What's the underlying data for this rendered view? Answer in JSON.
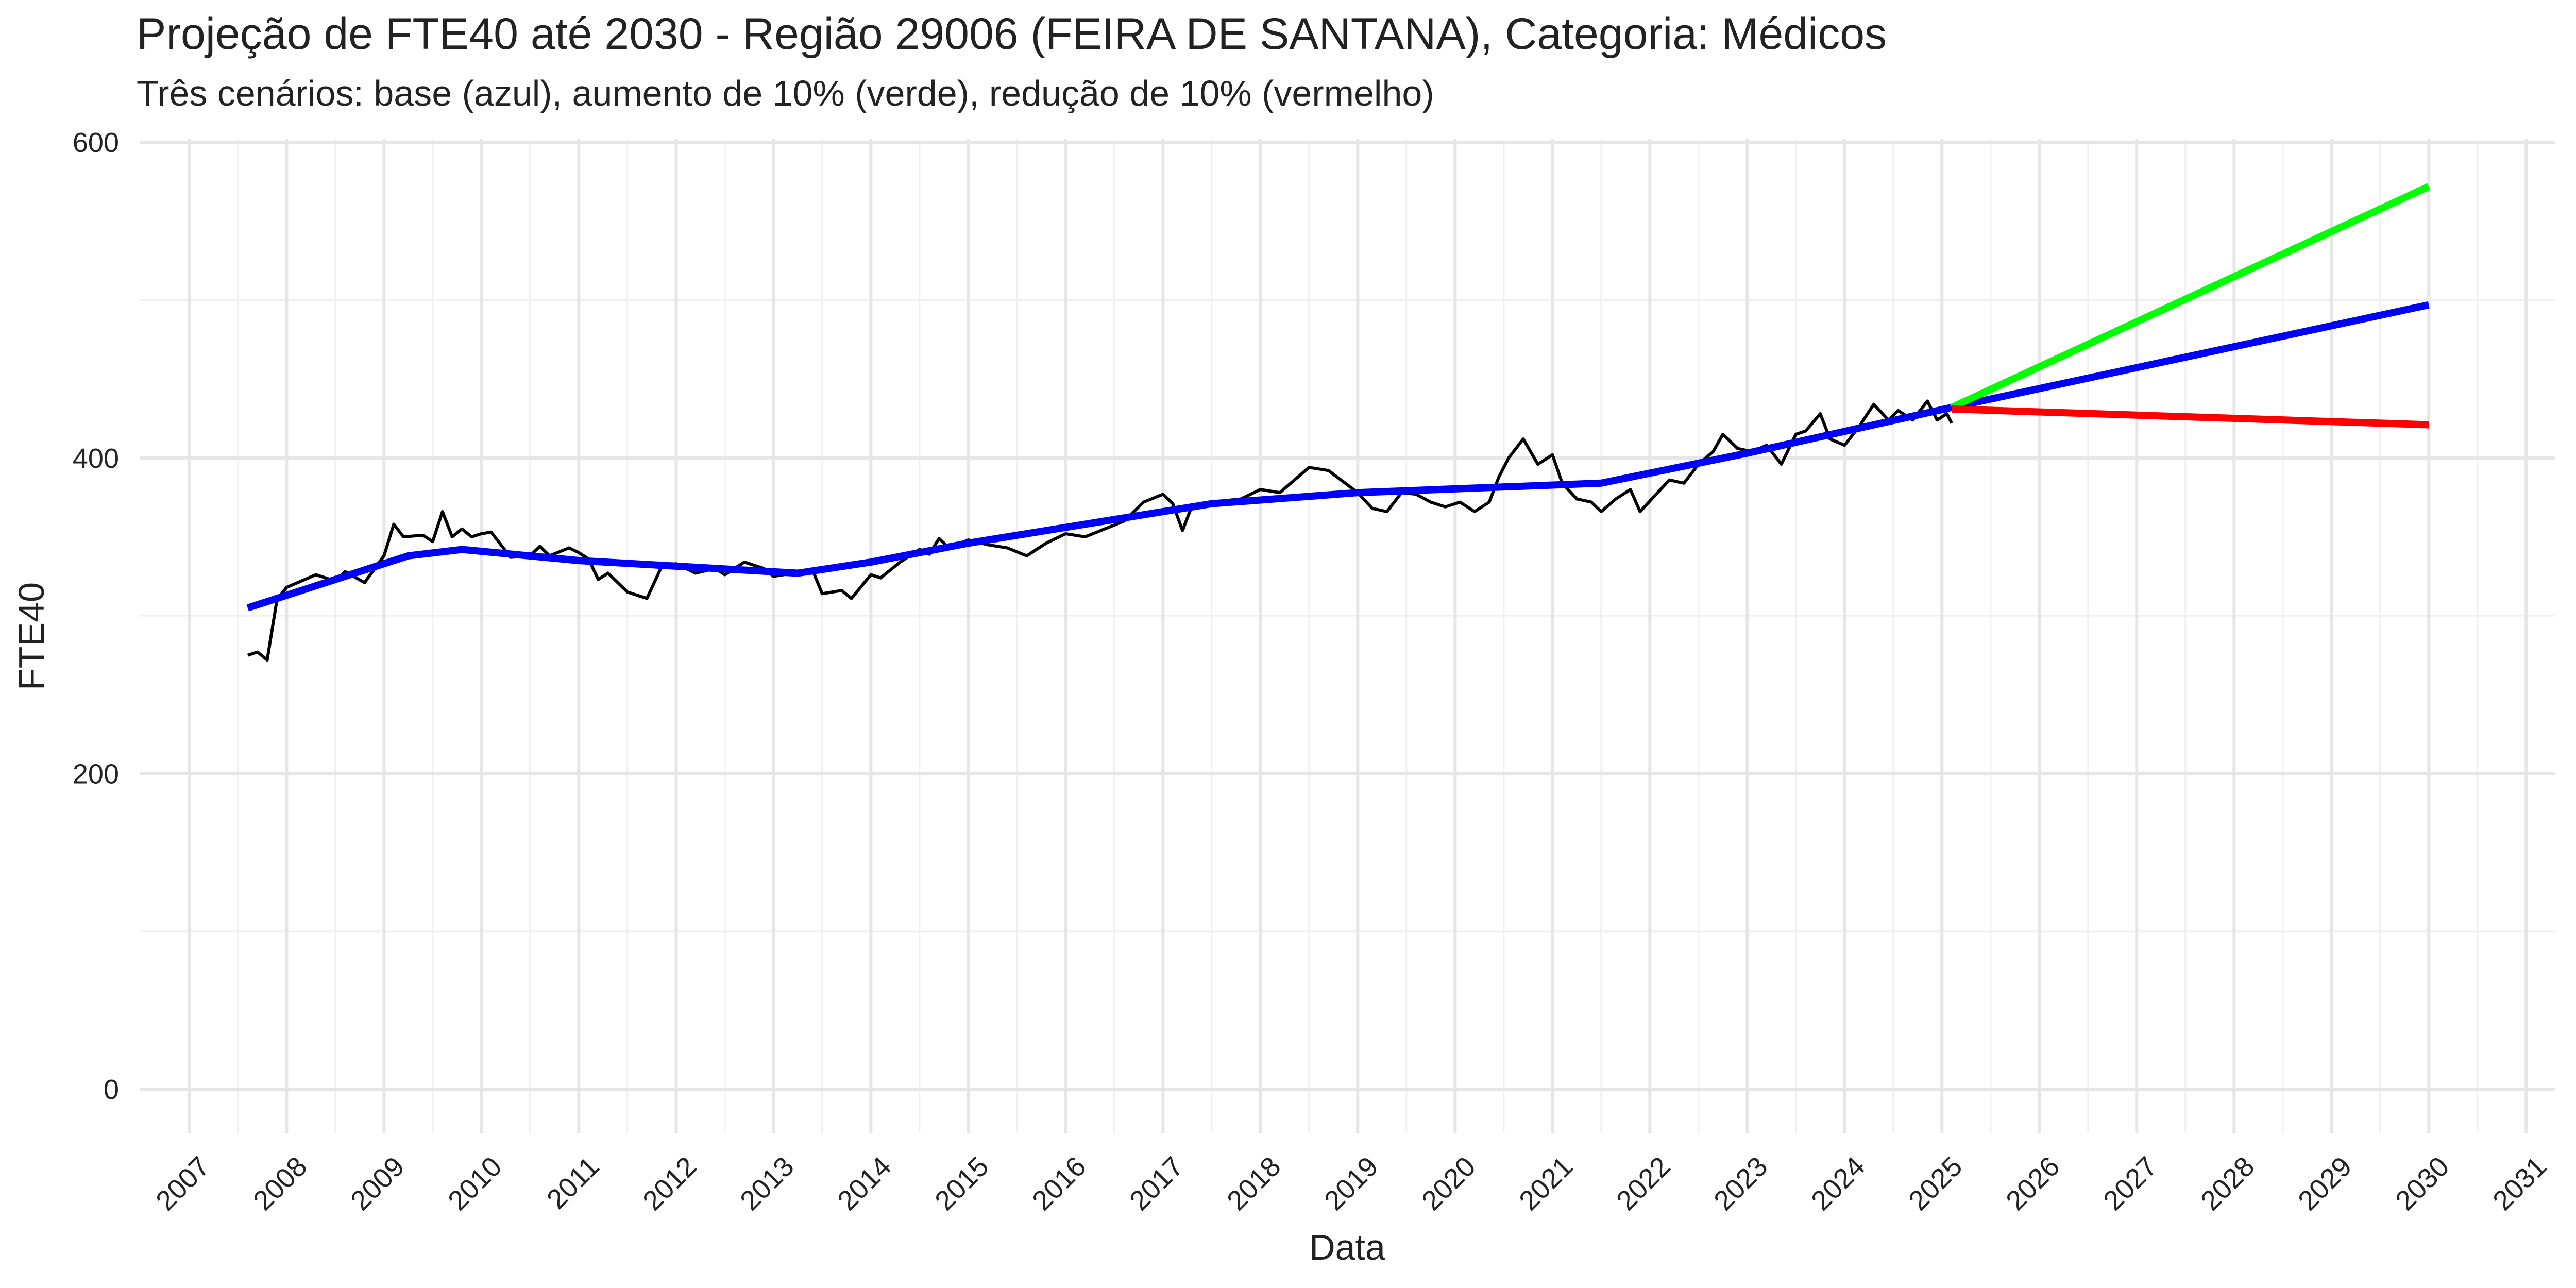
{
  "chart_data": {
    "type": "line",
    "title": "Projeção de FTE40 até 2030 - Região 29006 (FEIRA DE SANTANA), Categoria: Médicos",
    "subtitle": "Três cenários: base (azul), aumento de 10% (verde), redução de 10% (vermelho)",
    "x_label": "Data",
    "y_label": "FTE40",
    "xlim": [
      2006.49,
      2031.3
    ],
    "ylim": [
      -28,
      602
    ],
    "xticks": [
      2007,
      2008,
      2009,
      2010,
      2011,
      2012,
      2013,
      2014,
      2015,
      2016,
      2017,
      2018,
      2019,
      2020,
      2021,
      2022,
      2023,
      2024,
      2025,
      2026,
      2027,
      2028,
      2029,
      2030,
      2031
    ],
    "yticks": [
      0,
      200,
      400,
      600
    ],
    "grid": true,
    "minor_grid": true,
    "series": [
      {
        "color": "#000000",
        "width": 6,
        "x": [
          2007.6,
          2007.7,
          2007.8,
          2007.9,
          2008.0,
          2008.3,
          2008.5,
          2008.6,
          2008.8,
          2009.0,
          2009.1,
          2009.2,
          2009.4,
          2009.5,
          2009.6,
          2009.7,
          2009.8,
          2009.9,
          2010.0,
          2010.1,
          2010.3,
          2010.5,
          2010.6,
          2010.7,
          2010.9,
          2011.0,
          2011.1,
          2011.2,
          2011.3,
          2011.5,
          2011.7,
          2011.85,
          2012.0,
          2012.2,
          2012.4,
          2012.5,
          2012.7,
          2012.9,
          2013.0,
          2013.2,
          2013.4,
          2013.5,
          2013.7,
          2013.8,
          2014.0,
          2014.1,
          2014.3,
          2014.5,
          2014.6,
          2014.7,
          2014.8,
          2015.0,
          2015.2,
          2015.4,
          2015.6,
          2015.8,
          2016.0,
          2016.2,
          2016.4,
          2016.6,
          2016.8,
          2017.0,
          2017.1,
          2017.2,
          2017.3,
          2017.5,
          2017.8,
          2018.0,
          2018.2,
          2018.35,
          2018.5,
          2018.7,
          2018.85,
          2019.0,
          2019.15,
          2019.3,
          2019.45,
          2019.6,
          2019.75,
          2019.9,
          2020.05,
          2020.2,
          2020.35,
          2020.45,
          2020.55,
          2020.7,
          2020.85,
          2021.0,
          2021.1,
          2021.25,
          2021.4,
          2021.5,
          2021.65,
          2021.8,
          2021.9,
          2022.05,
          2022.2,
          2022.35,
          2022.5,
          2022.65,
          2022.75,
          2022.9,
          2023.05,
          2023.2,
          2023.35,
          2023.5,
          2023.6,
          2023.75,
          2023.85,
          2024.0,
          2024.15,
          2024.3,
          2024.45,
          2024.55,
          2024.7,
          2024.85,
          2024.95,
          2025.05,
          2025.1
        ],
        "values": [
          275,
          277,
          272,
          310,
          318,
          326,
          322,
          328,
          321,
          338,
          358,
          350,
          351,
          347,
          366,
          350,
          355,
          350,
          352,
          353,
          337,
          338,
          344,
          338,
          343,
          340,
          336,
          323,
          327,
          315,
          311,
          331,
          333,
          327,
          330,
          326,
          334,
          330,
          325,
          327,
          329,
          314,
          316,
          311,
          326,
          324,
          334,
          342,
          339,
          349,
          343,
          348,
          345,
          343,
          338,
          346,
          352,
          350,
          355,
          360,
          372,
          377,
          371,
          354,
          370,
          372,
          374,
          380,
          378,
          386,
          394,
          392,
          385,
          378,
          368,
          366,
          378,
          377,
          372,
          369,
          372,
          366,
          372,
          388,
          400,
          412,
          396,
          402,
          384,
          374,
          372,
          366,
          374,
          380,
          366,
          376,
          386,
          384,
          396,
          404,
          415,
          406,
          404,
          408,
          396,
          415,
          417,
          428,
          412,
          408,
          420,
          434,
          424,
          430,
          424,
          436,
          424,
          428,
          422
        ]
      },
      {
        "color": "#0000ff",
        "width": 14,
        "x": [
          2007.6,
          2009.25,
          2009.8,
          2011.0,
          2013.25,
          2014.0,
          2015.0,
          2016.0,
          2017.5,
          2019.0,
          2021.5,
          2023.0,
          2025.1,
          2030.0
        ],
        "values": [
          305,
          338,
          342,
          335,
          327,
          334,
          346,
          356,
          371,
          378,
          384,
          403,
          432,
          497
        ]
      },
      {
        "color": "#00ff00",
        "width": 14,
        "x": [
          2025.1,
          2030.0
        ],
        "values": [
          432,
          572
        ]
      },
      {
        "color": "#ff0000",
        "width": 14,
        "x": [
          2025.1,
          2030.0
        ],
        "values": [
          431,
          421
        ]
      }
    ]
  }
}
